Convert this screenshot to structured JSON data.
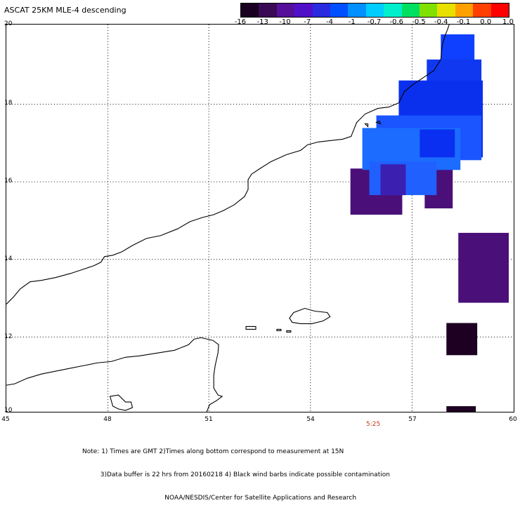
{
  "title": "ASCAT 25KM MLE-4 descending",
  "colorbar": {
    "labels": [
      "-16",
      "-13",
      "-10",
      "-7",
      "-4",
      "-1",
      "-0.7",
      "-0.6",
      "-0.5",
      "-0.4",
      "-0.1",
      "0.0",
      "1.0"
    ],
    "colors": [
      "#1a0020",
      "#3a0a55",
      "#55109a",
      "#5010c8",
      "#2a2ae0",
      "#0050ff",
      "#0090ff",
      "#00ccff",
      "#00eecc",
      "#00e060",
      "#80e000",
      "#e8e000",
      "#ffa000",
      "#ff4000",
      "#ff0000"
    ]
  },
  "map": {
    "lat_labels": [
      "20",
      "18",
      "16",
      "14",
      "12",
      "10"
    ],
    "lon_labels": [
      "45",
      "48",
      "51",
      "54",
      "57",
      "60"
    ],
    "time_label": "5:25"
  },
  "notes": [
    "Note: 1) Times are GMT 2)Times along bottom correspond to measurement at 15N",
    "         3)Data buffer is 22 hrs from 20160218 4) Black wind barbs indicate possible contamination",
    "                                         NOAA/NESDIS/Center for Satellite Applications and Research"
  ]
}
